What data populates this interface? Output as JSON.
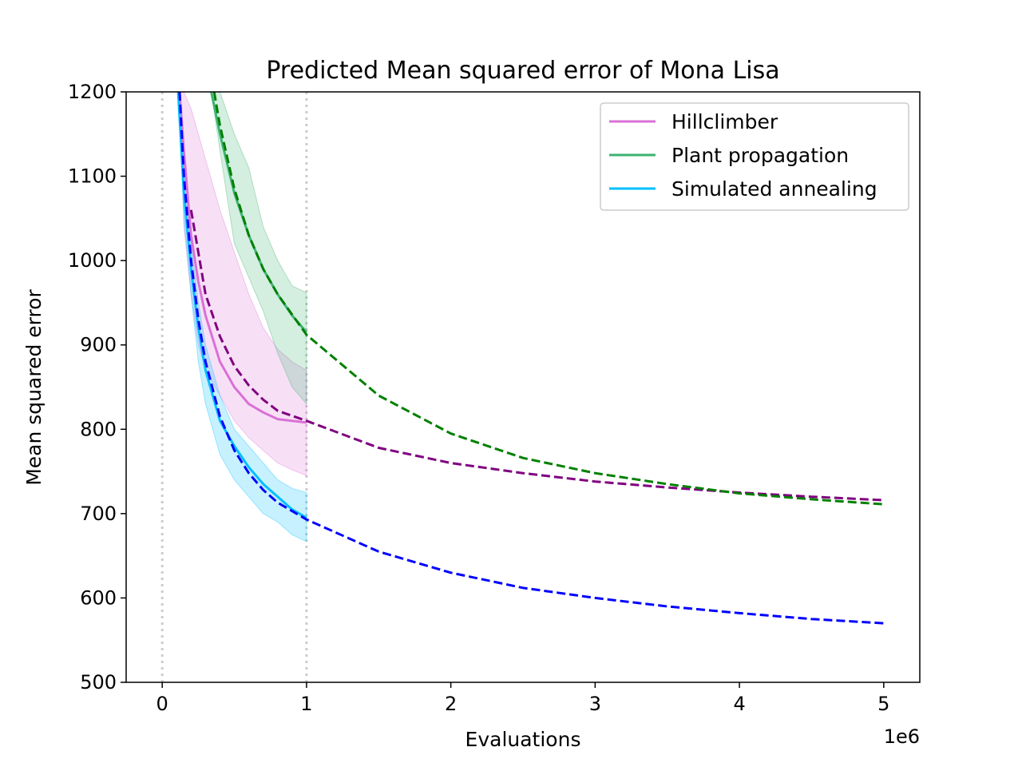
{
  "chart_data": {
    "type": "line",
    "title": "Predicted Mean squared error of Mona Lisa",
    "xlabel": "Evaluations",
    "ylabel": "Mean squared error",
    "x_offset_label": "1e6",
    "xlim": [
      -250000,
      5250000
    ],
    "ylim": [
      500,
      1200
    ],
    "x_ticks": [
      0,
      1000000,
      2000000,
      3000000,
      4000000,
      5000000
    ],
    "x_tick_labels": [
      "0",
      "1",
      "2",
      "3",
      "4",
      "5"
    ],
    "y_ticks": [
      500,
      600,
      700,
      800,
      900,
      1000,
      1100,
      1200
    ],
    "y_tick_labels": [
      "500",
      "600",
      "700",
      "800",
      "900",
      "1000",
      "1100",
      "1200"
    ],
    "vlines": [
      0,
      1000000
    ],
    "legend_position": "top-right",
    "series": [
      {
        "name": "Hillclimber",
        "color": "#da70d6",
        "fit_color": "#800080",
        "observed": {
          "x": [
            120000,
            150000,
            200000,
            250000,
            300000,
            400000,
            500000,
            600000,
            700000,
            800000,
            900000,
            1000000
          ],
          "y": [
            1200,
            1130,
            1030,
            975,
            935,
            880,
            850,
            830,
            820,
            812,
            810,
            808
          ],
          "upper": [
            1200,
            1200,
            1180,
            1150,
            1120,
            1060,
            1010,
            960,
            920,
            895,
            880,
            870
          ],
          "lower": [
            1200,
            1040,
            960,
            900,
            870,
            840,
            810,
            790,
            775,
            760,
            752,
            745
          ]
        },
        "fit": {
          "x": [
            200000,
            300000,
            400000,
            500000,
            600000,
            700000,
            800000,
            1000000,
            1500000,
            2000000,
            2500000,
            3000000,
            3500000,
            4000000,
            4500000,
            5000000
          ],
          "y": [
            1060,
            960,
            910,
            875,
            852,
            835,
            822,
            810,
            778,
            760,
            748,
            738,
            731,
            725,
            720,
            716
          ]
        }
      },
      {
        "name": "Plant propagation",
        "color": "#3cb371",
        "fit_color": "#008000",
        "observed": {
          "x": [
            340000,
            400000,
            500000,
            600000,
            700000,
            800000,
            900000,
            1000000
          ],
          "y": [
            1200,
            1150,
            1080,
            1030,
            990,
            960,
            935,
            915
          ],
          "upper": [
            1200,
            1200,
            1150,
            1110,
            1040,
            1000,
            970,
            962
          ],
          "lower": [
            1200,
            1130,
            1020,
            980,
            940,
            890,
            850,
            830
          ]
        },
        "fit": {
          "x": [
            360000,
            400000,
            500000,
            600000,
            700000,
            800000,
            1000000,
            1500000,
            2000000,
            2500000,
            3000000,
            3500000,
            4000000,
            4500000,
            5000000
          ],
          "y": [
            1200,
            1160,
            1085,
            1030,
            990,
            960,
            912,
            840,
            795,
            766,
            748,
            735,
            724,
            717,
            711
          ]
        }
      },
      {
        "name": "Simulated annealing",
        "color": "#00bfff",
        "fit_color": "#0000ff",
        "observed": {
          "x": [
            110000,
            150000,
            200000,
            250000,
            300000,
            400000,
            500000,
            600000,
            700000,
            800000,
            900000,
            1000000
          ],
          "y": [
            1200,
            1080,
            990,
            920,
            870,
            810,
            780,
            755,
            735,
            720,
            705,
            695
          ],
          "upper": [
            1200,
            1110,
            1020,
            950,
            900,
            840,
            800,
            780,
            760,
            740,
            730,
            725
          ],
          "lower": [
            1200,
            1050,
            960,
            880,
            830,
            770,
            740,
            720,
            700,
            690,
            675,
            667
          ]
        },
        "fit": {
          "x": [
            120000,
            150000,
            200000,
            250000,
            300000,
            400000,
            500000,
            600000,
            700000,
            800000,
            1000000,
            1500000,
            2000000,
            2500000,
            3000000,
            3500000,
            4000000,
            4500000,
            5000000
          ],
          "y": [
            1200,
            1100,
            1000,
            930,
            880,
            815,
            775,
            748,
            728,
            713,
            693,
            655,
            630,
            612,
            600,
            590,
            582,
            575,
            570
          ]
        }
      }
    ]
  }
}
